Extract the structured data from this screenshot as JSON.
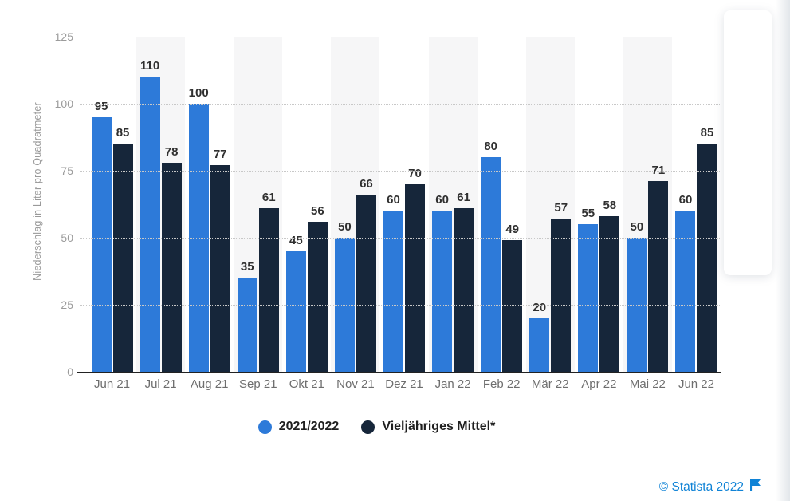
{
  "chart_data": {
    "type": "bar",
    "title": "",
    "xlabel": "",
    "ylabel": "Niederschlag in Liter pro Quadratmeter",
    "ylim": [
      0,
      125
    ],
    "yticks": [
      0,
      25,
      50,
      75,
      100,
      125
    ],
    "grid": "horizontal-dotted",
    "legend_position": "bottom-center",
    "bar_value_labels": true,
    "categories": [
      "Jun 21",
      "Jul 21",
      "Aug 21",
      "Sep 21",
      "Okt 21",
      "Nov 21",
      "Dez 21",
      "Jan 22",
      "Feb 22",
      "Mär 22",
      "Apr 22",
      "Mai 22",
      "Jun 22"
    ],
    "series": [
      {
        "name": "2021/2022",
        "color": "#2d7ad9",
        "values": [
          95,
          110,
          100,
          35,
          45,
          50,
          60,
          60,
          80,
          20,
          55,
          50,
          60
        ]
      },
      {
        "name": "Vieljähriges Mittel*",
        "color": "#16263a",
        "values": [
          85,
          78,
          77,
          61,
          56,
          66,
          70,
          61,
          49,
          57,
          58,
          71,
          85
        ]
      }
    ],
    "striped_categories": [
      "Jul 21",
      "Sep 21",
      "Nov 21",
      "Jan 22",
      "Mär 22",
      "Mai 22"
    ],
    "stripe_color": "#f6f6f7"
  },
  "colors": {
    "series_blue": "#2d7ad9",
    "series_navy": "#16263a",
    "axis_text": "#9b9b9b",
    "bar_label_text": "#303030",
    "credit_link": "#1083d6"
  },
  "credit": {
    "text": "© Statista 2022",
    "flag_icon": "statista-flag"
  }
}
